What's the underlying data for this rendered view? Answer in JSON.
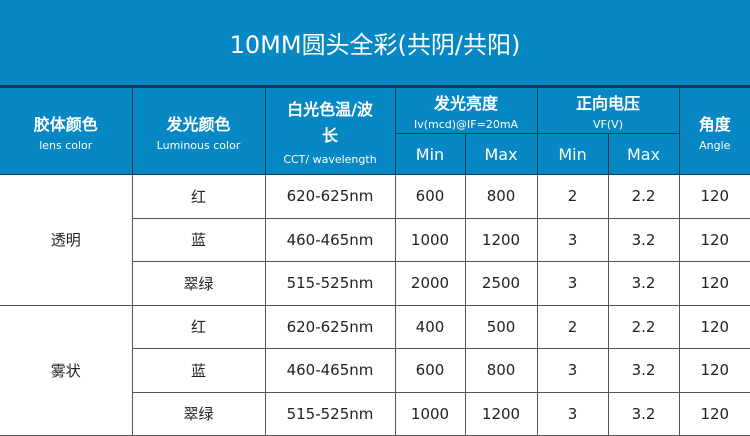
{
  "title": "10MM圆头全彩(共阴/共阳)",
  "header": {
    "lens": {
      "zh": "胶体颜色",
      "en": "lens color"
    },
    "luminous": {
      "zh": "发光颜色",
      "en": "Luminous color"
    },
    "cct": {
      "zh": "白光色温/波长",
      "en": "CCT/ wavelength"
    },
    "brightness": {
      "zh": "发光亮度",
      "en": "Iv(mcd)@IF=20mA"
    },
    "voltage": {
      "zh": "正向电压",
      "en": "VF(V)"
    },
    "angle": {
      "zh": "角度",
      "en": "Angle"
    },
    "min": "Min",
    "max": "Max"
  },
  "groups": [
    {
      "lens": "透明",
      "rows": [
        {
          "color": "红",
          "wl": "620-625nm",
          "iv_min": "600",
          "iv_max": "800",
          "vf_min": "2",
          "vf_max": "2.2",
          "angle": "120"
        },
        {
          "color": "蓝",
          "wl": "460-465nm",
          "iv_min": "1000",
          "iv_max": "1200",
          "vf_min": "3",
          "vf_max": "3.2",
          "angle": "120"
        },
        {
          "color": "翠绿",
          "wl": "515-525nm",
          "iv_min": "2000",
          "iv_max": "2500",
          "vf_min": "3",
          "vf_max": "3.2",
          "angle": "120"
        }
      ]
    },
    {
      "lens": "雾状",
      "rows": [
        {
          "color": "红",
          "wl": "620-625nm",
          "iv_min": "400",
          "iv_max": "500",
          "vf_min": "2",
          "vf_max": "2.2",
          "angle": "120"
        },
        {
          "color": "蓝",
          "wl": "460-465nm",
          "iv_min": "600",
          "iv_max": "800",
          "vf_min": "3",
          "vf_max": "3.2",
          "angle": "120"
        },
        {
          "color": "翠绿",
          "wl": "515-525nm",
          "iv_min": "1000",
          "iv_max": "1200",
          "vf_min": "3",
          "vf_max": "3.2",
          "angle": "120"
        }
      ]
    }
  ],
  "colors": {
    "header_bg": "#0787c3",
    "border": "#1b3a4e"
  }
}
